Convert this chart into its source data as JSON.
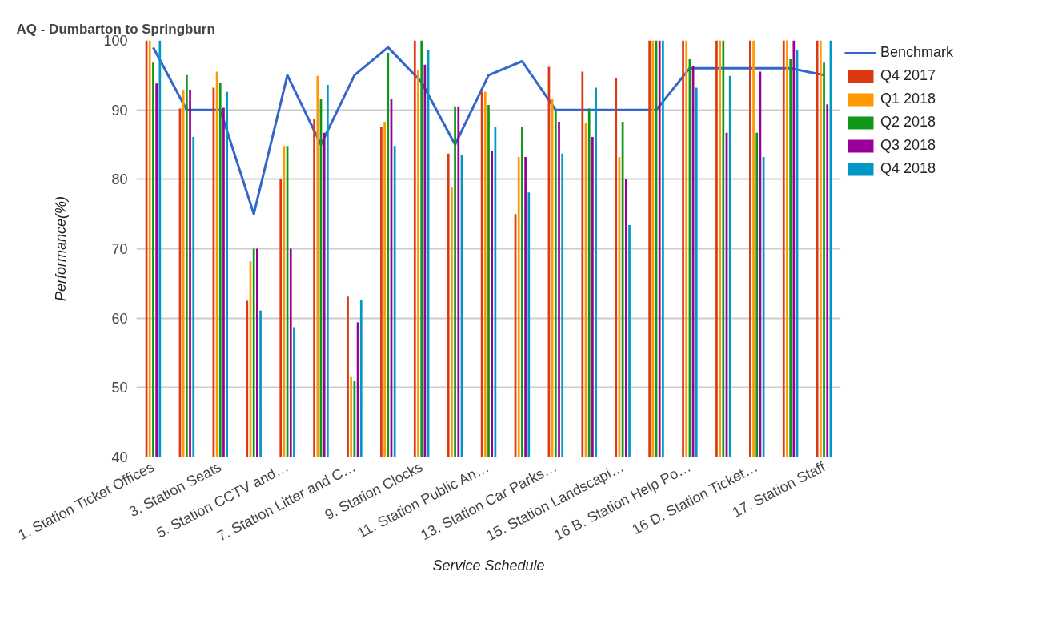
{
  "chart_data": {
    "type": "bar",
    "title": "AQ - Dumbarton to Springburn",
    "xlabel": "Service Schedule",
    "ylabel": "Performance(%)",
    "categories": [
      "1. Station Ticket Offices",
      null,
      "3. Station Seats",
      null,
      "5. Station CCTV and…",
      null,
      "7. Station Litter and C…",
      null,
      "9. Station Clocks",
      null,
      "11. Station Public An…",
      null,
      "13. Station Car Parks…",
      null,
      "15. Station Landscapi…",
      null,
      "16 B. Station Help Po…",
      null,
      "16 D. Station Ticket…",
      null,
      "17. Station Staff"
    ],
    "series": [
      {
        "name": "Benchmark",
        "type": "line",
        "color": "#3366cc",
        "values": [
          99,
          90,
          90,
          75,
          95,
          85,
          95,
          99,
          94,
          85,
          95,
          97,
          90,
          90,
          90,
          90,
          96,
          96,
          96,
          96,
          95
        ]
      },
      {
        "name": "Q4 2017",
        "color": "#dc3912",
        "values": [
          100,
          90.2,
          93.2,
          62.5,
          80,
          88.7,
          63.1,
          87.5,
          100,
          83.7,
          92.6,
          75,
          96.2,
          95.5,
          94.6,
          100,
          100,
          100,
          100,
          100,
          100
        ]
      },
      {
        "name": "Q1 2018",
        "color": "#ff9900",
        "values": [
          100,
          92.9,
          95.5,
          68.2,
          84.8,
          94.9,
          51.5,
          88.3,
          95.7,
          78.9,
          92.6,
          83.2,
          91.6,
          88.1,
          83.2,
          100,
          100,
          100,
          100,
          100,
          100
        ]
      },
      {
        "name": "Q2 2018",
        "color": "#109618",
        "values": [
          96.8,
          95,
          93.9,
          70,
          84.8,
          91.6,
          50.9,
          98.2,
          100,
          90.5,
          90.7,
          87.5,
          89.9,
          90.2,
          88.3,
          100,
          97.3,
          100,
          86.7,
          97.3,
          96.8
        ]
      },
      {
        "name": "Q3 2018",
        "color": "#990099",
        "values": [
          93.8,
          92.9,
          90.3,
          70,
          70,
          86.7,
          59.4,
          91.6,
          96.5,
          90.5,
          84.1,
          83.2,
          88.3,
          86.1,
          80,
          100,
          96.3,
          86.7,
          95.5,
          100,
          90.8
        ]
      },
      {
        "name": "Q4 2018",
        "color": "#0099c6",
        "values": [
          100,
          86.1,
          92.6,
          61.1,
          58.7,
          93.6,
          62.6,
          84.8,
          98.6,
          83.5,
          87.5,
          78.1,
          83.7,
          93.2,
          73.4,
          100,
          93.2,
          94.9,
          83.2,
          98.6,
          100
        ]
      }
    ],
    "ylim": [
      40,
      100
    ],
    "yticks": [
      40,
      50,
      60,
      70,
      80,
      90,
      100
    ],
    "grid": "y",
    "legend": "top right"
  }
}
